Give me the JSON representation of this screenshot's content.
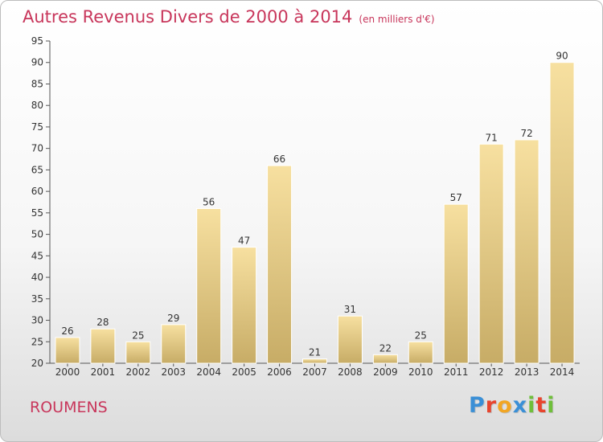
{
  "header": {
    "title": "Autres Revenus Divers de 2000 à 2014",
    "subtitle": "(en milliers d'€)"
  },
  "footer": {
    "place": "ROUMENS",
    "logo_text": "Proxiti",
    "logo_colors": [
      "#3a8fd6",
      "#e8452e",
      "#f2a623",
      "#3a8fd6",
      "#6fbf3a",
      "#e8452e",
      "#6fbf3a"
    ]
  },
  "colors": {
    "title": "#c8365b",
    "bar_light": "#f7e0a0",
    "bar_dark": "#c7ac66"
  },
  "chart_data": {
    "type": "bar",
    "categories": [
      "2000",
      "2001",
      "2002",
      "2003",
      "2004",
      "2005",
      "2006",
      "2007",
      "2008",
      "2009",
      "2010",
      "2011",
      "2012",
      "2013",
      "2014"
    ],
    "values": [
      26,
      28,
      25,
      29,
      56,
      47,
      66,
      21,
      31,
      22,
      25,
      57,
      71,
      72,
      90
    ],
    "ylim": [
      20,
      95
    ],
    "yticks": [
      20,
      25,
      30,
      35,
      40,
      45,
      50,
      55,
      60,
      65,
      70,
      75,
      80,
      85,
      90,
      95
    ],
    "grid": false,
    "legend": "none"
  }
}
